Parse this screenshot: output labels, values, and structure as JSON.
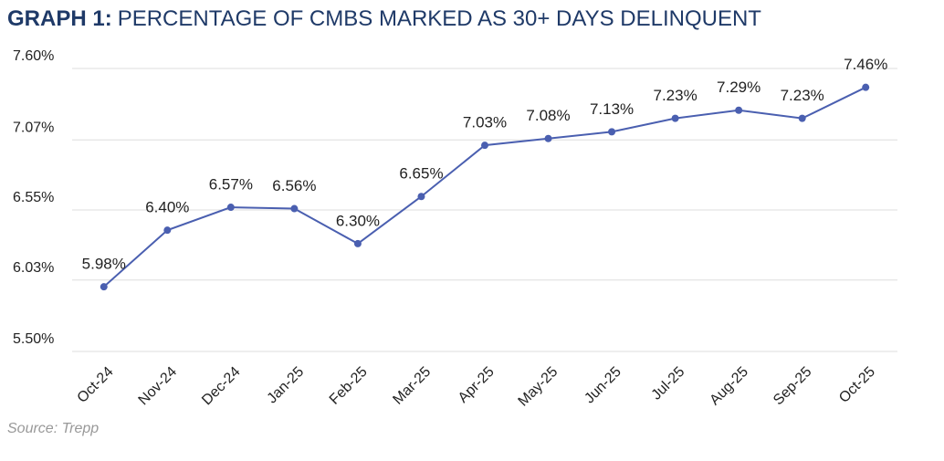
{
  "chart_data": {
    "type": "line",
    "title_label": "GRAPH 1:",
    "title": "PERCENTAGE OF CMBS MARKED AS 30+ DAYS DELINQUENT",
    "source": "Source: Trepp",
    "categories": [
      "Oct-24",
      "Nov-24",
      "Dec-24",
      "Jan-25",
      "Feb-25",
      "Mar-25",
      "Apr-25",
      "May-25",
      "Jun-25",
      "Jul-25",
      "Aug-25",
      "Sep-25",
      "Oct-25"
    ],
    "values": [
      5.98,
      6.4,
      6.57,
      6.56,
      6.3,
      6.65,
      7.03,
      7.08,
      7.13,
      7.23,
      7.29,
      7.23,
      7.46
    ],
    "value_labels": [
      "5.98%",
      "6.40%",
      "6.57%",
      "6.56%",
      "6.30%",
      "6.65%",
      "7.03%",
      "7.08%",
      "7.13%",
      "7.23%",
      "7.29%",
      "7.23%",
      "7.46%"
    ],
    "color": "#4a5fb0",
    "ylim": [
      5.5,
      7.6
    ],
    "yticks": [
      {
        "value": 5.5,
        "label": "5.50%"
      },
      {
        "value": 6.03,
        "label": "6.03%"
      },
      {
        "value": 6.55,
        "label": "6.55%"
      },
      {
        "value": 7.07,
        "label": "7.07%"
      },
      {
        "value": 7.6,
        "label": "7.60%"
      }
    ],
    "grid": true
  }
}
